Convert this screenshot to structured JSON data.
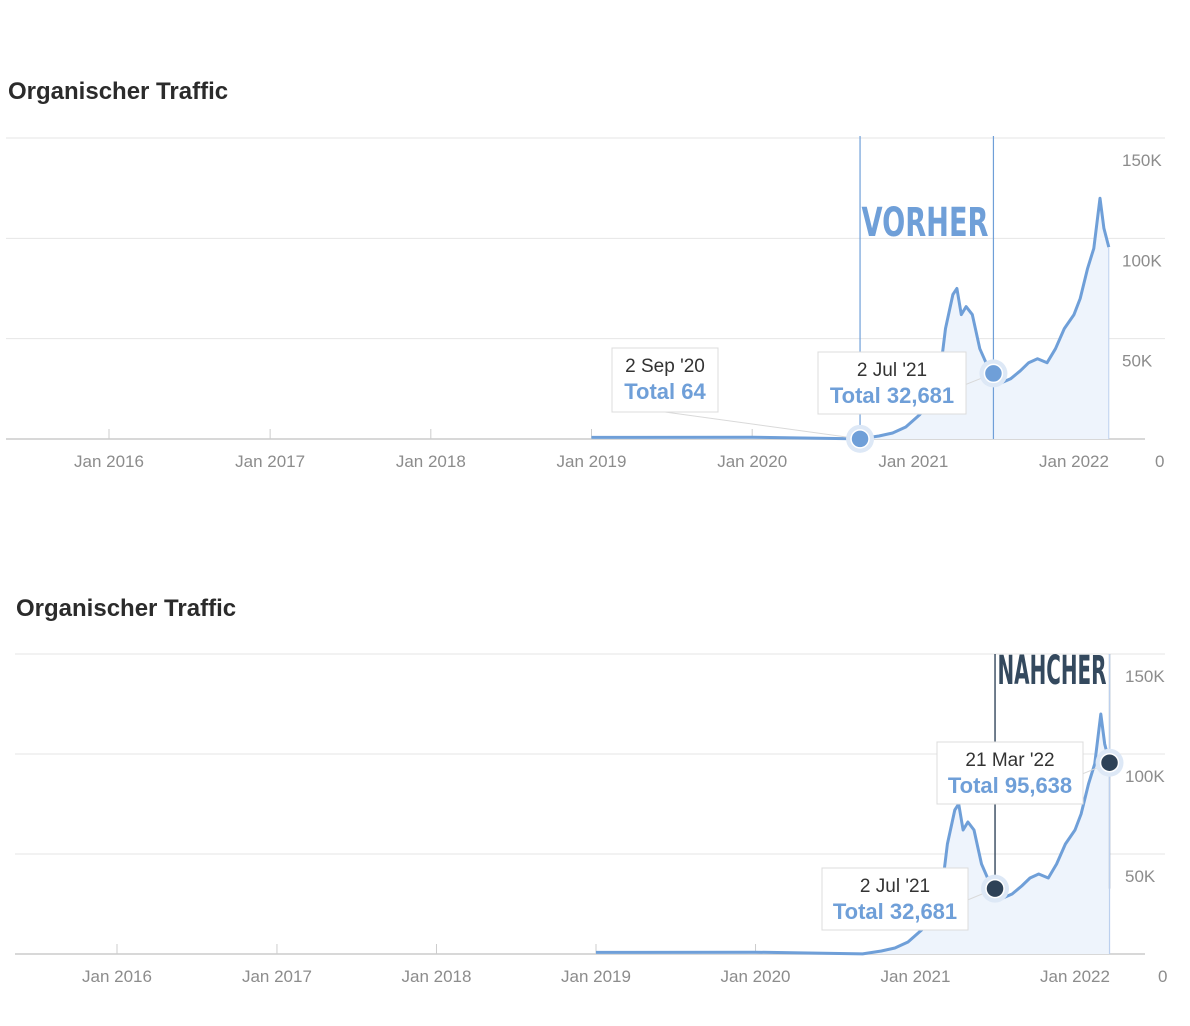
{
  "colors": {
    "line": "#6f9fd8",
    "area": "#eef4fc",
    "grid": "#e6e6e6",
    "axis": "#cccccc",
    "before_marker": "#6f9fd8",
    "after_marker": "#2e4257",
    "after_label": "#34495e"
  },
  "charts": [
    {
      "title": "Organischer Traffic",
      "period_label": "VORHER",
      "tooltips": [
        {
          "date": "2 Sep '20",
          "total": "Total 64"
        },
        {
          "date": "2 Jul '21",
          "total": "Total 32,681"
        }
      ]
    },
    {
      "title": "Organischer Traffic",
      "period_label": "NAHCHER",
      "tooltips": [
        {
          "date": "21 Mar '22",
          "total": "Total 95,638"
        },
        {
          "date": "2 Jul '21",
          "total": "Total 32,681"
        }
      ]
    }
  ],
  "chart_data": [
    {
      "type": "area",
      "title": "Organischer Traffic",
      "x_ticks": [
        "Jan 2016",
        "Jan 2017",
        "Jan 2018",
        "Jan 2019",
        "Jan 2020",
        "Jan 2021",
        "Jan 2022"
      ],
      "y_ticks": [
        "150K",
        "100K",
        "50K",
        "0"
      ],
      "ylim": [
        0,
        150000
      ],
      "grid": true,
      "series": [
        {
          "x": [
            "2019-01-01",
            "2020-01-01",
            "2020-09-02",
            "2020-10-15",
            "2020-11-15",
            "2020-12-15",
            "2021-01-15",
            "2021-02-15",
            "2021-03-01",
            "2021-03-15",
            "2021-04-01",
            "2021-04-10",
            "2021-04-20",
            "2021-05-01",
            "2021-05-15",
            "2021-06-01",
            "2021-06-15",
            "2021-07-02",
            "2021-07-20",
            "2021-08-10",
            "2021-09-01",
            "2021-09-20",
            "2021-10-10",
            "2021-11-01",
            "2021-11-20",
            "2021-12-10",
            "2022-01-01",
            "2022-01-15",
            "2022-02-01",
            "2022-02-15",
            "2022-03-01",
            "2022-03-10",
            "2022-03-21"
          ],
          "y": [
            800,
            900,
            64,
            1500,
            3000,
            6000,
            12000,
            20000,
            30000,
            55000,
            72000,
            75000,
            62000,
            66000,
            62000,
            45000,
            38000,
            32681,
            28000,
            30000,
            34000,
            38000,
            40000,
            38000,
            45000,
            55000,
            62000,
            70000,
            85000,
            95000,
            120000,
            105000,
            95638
          ]
        }
      ],
      "annotations": [
        {
          "date": "2 Sep '20",
          "value": 64,
          "label": "Total 64"
        },
        {
          "date": "2 Jul '21",
          "value": 32681,
          "label": "Total 32,681"
        }
      ],
      "period": {
        "label": "VORHER",
        "from": "2020-09-02",
        "to": "2021-07-02"
      }
    },
    {
      "type": "area",
      "title": "Organischer Traffic",
      "x_ticks": [
        "Jan 2016",
        "Jan 2017",
        "Jan 2018",
        "Jan 2019",
        "Jan 2020",
        "Jan 2021",
        "Jan 2022"
      ],
      "y_ticks": [
        "150K",
        "100K",
        "50K",
        "0"
      ],
      "ylim": [
        0,
        150000
      ],
      "grid": true,
      "series": [
        {
          "x": [
            "2019-01-01",
            "2020-01-01",
            "2020-09-02",
            "2020-10-15",
            "2020-11-15",
            "2020-12-15",
            "2021-01-15",
            "2021-02-15",
            "2021-03-01",
            "2021-03-15",
            "2021-04-01",
            "2021-04-10",
            "2021-04-20",
            "2021-05-01",
            "2021-05-15",
            "2021-06-01",
            "2021-06-15",
            "2021-07-02",
            "2021-07-20",
            "2021-08-10",
            "2021-09-01",
            "2021-09-20",
            "2021-10-10",
            "2021-11-01",
            "2021-11-20",
            "2021-12-10",
            "2022-01-01",
            "2022-01-15",
            "2022-02-01",
            "2022-02-15",
            "2022-03-01",
            "2022-03-10",
            "2022-03-21"
          ],
          "y": [
            800,
            900,
            64,
            1500,
            3000,
            6000,
            12000,
            20000,
            30000,
            55000,
            72000,
            75000,
            62000,
            66000,
            62000,
            45000,
            38000,
            32681,
            28000,
            30000,
            34000,
            38000,
            40000,
            38000,
            45000,
            55000,
            62000,
            70000,
            85000,
            95000,
            120000,
            105000,
            95638
          ]
        }
      ],
      "annotations": [
        {
          "date": "21 Mar '22",
          "value": 95638,
          "label": "Total 95,638"
        },
        {
          "date": "2 Jul '21",
          "value": 32681,
          "label": "Total 32,681"
        }
      ],
      "period": {
        "label": "NAHCHER",
        "from": "2021-07-02",
        "to": "2022-03-21"
      }
    }
  ]
}
